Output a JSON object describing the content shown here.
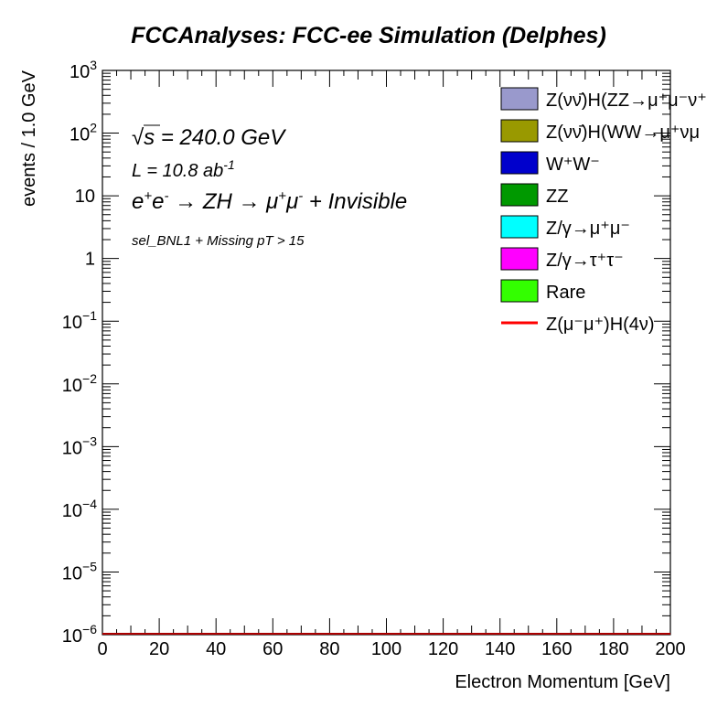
{
  "chart_data": {
    "type": "bar",
    "title": "FCCAnalyses: FCC-ee Simulation (Delphes)",
    "xlabel": "Electron Momentum [GeV]",
    "ylabel": "events / 1.0 GeV",
    "xlim": [
      0,
      200
    ],
    "ylim": [
      1e-06,
      1000
    ],
    "log_y": true,
    "grid": false,
    "x_ticks": [
      "0",
      "20",
      "40",
      "60",
      "80",
      "100",
      "120",
      "140",
      "160",
      "180",
      "200"
    ],
    "x_tick_values": [
      0,
      20,
      40,
      60,
      80,
      100,
      120,
      140,
      160,
      180,
      200
    ],
    "y_tick_exponents": [
      -6,
      -5,
      -4,
      -3,
      -2,
      -1,
      0,
      1,
      2,
      3
    ],
    "y_tick_mantissa": [
      "1",
      "10"
    ],
    "y_tick_plain": [
      "1",
      "10"
    ],
    "annotations": {
      "sqrt_s_symbol": "√s",
      "sqrt_s_value": " = 240.0 GeV",
      "lumi_prefix": "L = 10.8 ab",
      "lumi_sup": "-1",
      "process": [
        "e",
        "+",
        "e",
        "-",
        " → ZH → μ",
        "+",
        "μ",
        "-",
        " + Invisible"
      ],
      "selection": "sel_BNL1 + Missing pT > 15"
    },
    "legend_position": "top-right",
    "series": [
      {
        "name": "Z(νν̄)H(ZZ→μ⁺μ⁻ν⁺",
        "color": "#9999cc",
        "style": "fill",
        "values": []
      },
      {
        "name": "Z(νν̄)H(WW→μ⁺νμ",
        "color": "#999900",
        "style": "fill",
        "values": []
      },
      {
        "name": "W⁺W⁻",
        "color": "#0000cc",
        "style": "fill",
        "values": []
      },
      {
        "name": "ZZ",
        "color": "#009900",
        "style": "fill",
        "values": []
      },
      {
        "name": "Z/γ→μ⁺μ⁻",
        "color": "#00ffff",
        "style": "fill",
        "values": []
      },
      {
        "name": "Z/γ→τ⁺τ⁻",
        "color": "#ff00ff",
        "style": "fill",
        "values": []
      },
      {
        "name": "Rare",
        "color": "#33ff00",
        "style": "fill",
        "values": []
      },
      {
        "name": "Z(μ⁻μ⁺)H(4ν)",
        "color": "#ff0000",
        "style": "line",
        "values": []
      }
    ]
  }
}
